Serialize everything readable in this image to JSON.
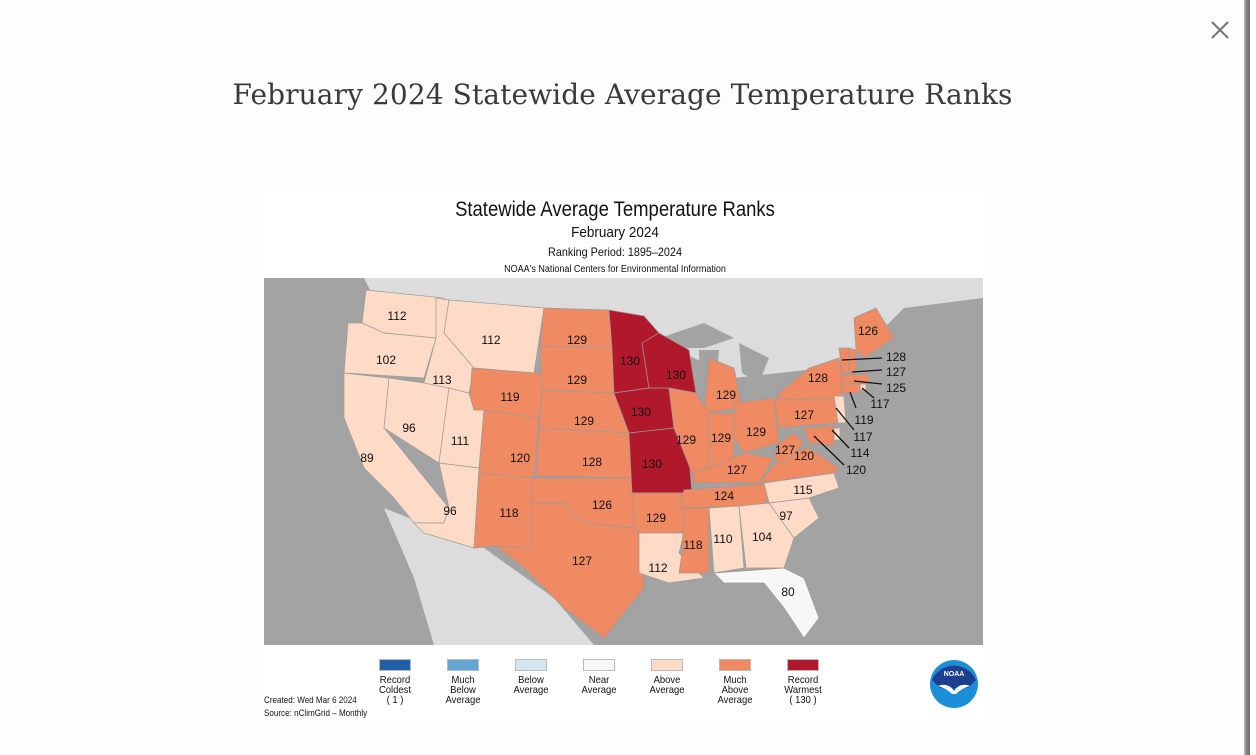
{
  "page": {
    "title": "February 2024 Statewide Average Temperature Ranks",
    "close_icon": "close-icon"
  },
  "chart_data": {
    "type": "choropleth-map",
    "title": "Statewide Average Temperature Ranks",
    "subtitle": "February 2024",
    "ranking_period": "Ranking Period: 1895–2024",
    "source_org": "NOAA's National Centers for Environmental Information",
    "created": "Created: Wed Mar  6 2024",
    "source": "Source: nClimGrid – Monthly",
    "rank_range": [
      1,
      130
    ],
    "legend": [
      {
        "label": "Record\nColdest\n( 1 )",
        "color": "#1f5ea8"
      },
      {
        "label": "Much\nBelow\nAverage",
        "color": "#64a6d1"
      },
      {
        "label": "Below\nAverage",
        "color": "#d2e5f1"
      },
      {
        "label": "Near\nAverage",
        "color": "#f7f7f7"
      },
      {
        "label": "Above\nAverage",
        "color": "#fddbc7"
      },
      {
        "label": "Much\nAbove\nAverage",
        "color": "#ef8a62"
      },
      {
        "label": "Record\nWarmest\n( 130 )",
        "color": "#b2182b"
      }
    ],
    "states": [
      {
        "state": "WA",
        "rank": 112,
        "category": "Above Average"
      },
      {
        "state": "OR",
        "rank": 102,
        "category": "Above Average"
      },
      {
        "state": "CA",
        "rank": 89,
        "category": "Above Average"
      },
      {
        "state": "ID",
        "rank": 113,
        "category": "Above Average"
      },
      {
        "state": "NV",
        "rank": 96,
        "category": "Above Average"
      },
      {
        "state": "MT",
        "rank": 112,
        "category": "Above Average"
      },
      {
        "state": "WY",
        "rank": 119,
        "category": "Much Above Average"
      },
      {
        "state": "UT",
        "rank": 111,
        "category": "Above Average"
      },
      {
        "state": "AZ",
        "rank": 96,
        "category": "Above Average"
      },
      {
        "state": "CO",
        "rank": 120,
        "category": "Much Above Average"
      },
      {
        "state": "NM",
        "rank": 118,
        "category": "Much Above Average"
      },
      {
        "state": "ND",
        "rank": 129,
        "category": "Much Above Average"
      },
      {
        "state": "SD",
        "rank": 129,
        "category": "Much Above Average"
      },
      {
        "state": "NE",
        "rank": 129,
        "category": "Much Above Average"
      },
      {
        "state": "KS",
        "rank": 128,
        "category": "Much Above Average"
      },
      {
        "state": "OK",
        "rank": 126,
        "category": "Much Above Average"
      },
      {
        "state": "TX",
        "rank": 127,
        "category": "Much Above Average"
      },
      {
        "state": "MN",
        "rank": 130,
        "category": "Record Warmest"
      },
      {
        "state": "IA",
        "rank": 130,
        "category": "Record Warmest"
      },
      {
        "state": "MO",
        "rank": 130,
        "category": "Record Warmest"
      },
      {
        "state": "WI",
        "rank": 130,
        "category": "Record Warmest"
      },
      {
        "state": "AR",
        "rank": 129,
        "category": "Much Above Average"
      },
      {
        "state": "LA",
        "rank": 112,
        "category": "Above Average"
      },
      {
        "state": "MI",
        "rank": 129,
        "category": "Much Above Average"
      },
      {
        "state": "IL",
        "rank": 129,
        "category": "Much Above Average"
      },
      {
        "state": "IN",
        "rank": 129,
        "category": "Much Above Average"
      },
      {
        "state": "OH",
        "rank": 129,
        "category": "Much Above Average"
      },
      {
        "state": "KY",
        "rank": 127,
        "category": "Much Above Average"
      },
      {
        "state": "TN",
        "rank": 124,
        "category": "Much Above Average"
      },
      {
        "state": "MS",
        "rank": 118,
        "category": "Much Above Average"
      },
      {
        "state": "AL",
        "rank": 110,
        "category": "Above Average"
      },
      {
        "state": "GA",
        "rank": 104,
        "category": "Above Average"
      },
      {
        "state": "FL",
        "rank": 80,
        "category": "Near Average"
      },
      {
        "state": "SC",
        "rank": 97,
        "category": "Above Average"
      },
      {
        "state": "NC",
        "rank": 115,
        "category": "Above Average"
      },
      {
        "state": "VA",
        "rank": 120,
        "category": "Much Above Average"
      },
      {
        "state": "WV",
        "rank": 127,
        "category": "Much Above Average"
      },
      {
        "state": "PA",
        "rank": 127,
        "category": "Much Above Average"
      },
      {
        "state": "NY",
        "rank": 128,
        "category": "Much Above Average"
      },
      {
        "state": "ME",
        "rank": 126,
        "category": "Much Above Average"
      },
      {
        "state": "NH",
        "rank": 127,
        "category": "Much Above Average"
      },
      {
        "state": "VT",
        "rank": 128,
        "category": "Much Above Average"
      },
      {
        "state": "MA",
        "rank": 125,
        "category": "Much Above Average"
      },
      {
        "state": "RI",
        "rank": 117,
        "category": "Above Average"
      },
      {
        "state": "CT",
        "rank": 119,
        "category": "Much Above Average"
      },
      {
        "state": "NJ",
        "rank": 117,
        "category": "Above Average"
      },
      {
        "state": "DE",
        "rank": 114,
        "category": "Above Average"
      },
      {
        "state": "MD",
        "rank": 120,
        "category": "Much Above Average"
      }
    ]
  }
}
